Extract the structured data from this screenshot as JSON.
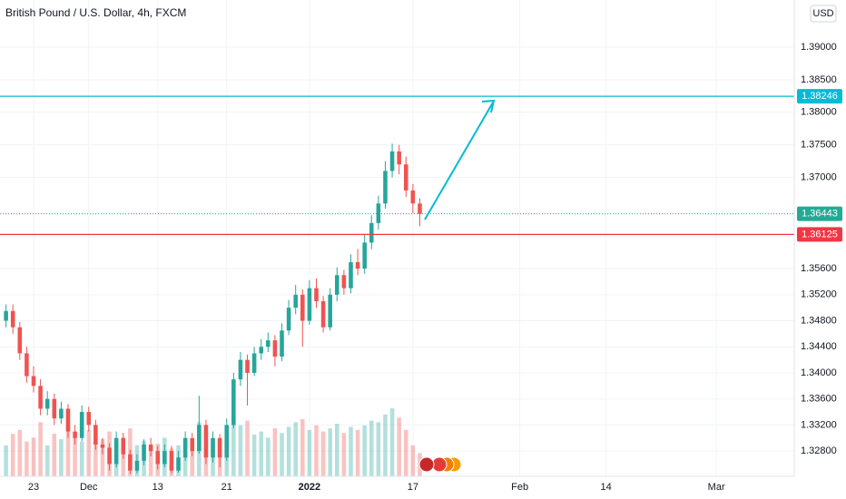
{
  "chart_data": {
    "type": "candlestick",
    "title": "British Pound / U.S. Dollar, 4h, FXCM",
    "currency": "USD",
    "x": [
      18,
      19,
      20,
      21,
      22,
      23,
      24,
      25,
      26,
      27,
      28,
      29,
      30,
      31,
      32,
      33,
      34,
      35,
      36,
      37,
      38,
      39,
      40,
      41,
      42,
      43,
      44,
      45,
      46,
      47,
      48,
      49,
      50,
      51,
      52,
      53,
      54,
      55,
      56,
      57,
      58,
      59,
      60,
      61,
      62,
      63,
      64,
      65,
      66,
      67,
      68,
      69,
      70,
      71,
      72,
      73,
      74,
      75,
      76,
      77,
      78
    ],
    "open": [
      1.348,
      1.3495,
      1.347,
      1.343,
      1.3395,
      1.338,
      1.3345,
      1.336,
      1.333,
      1.3345,
      1.331,
      1.33,
      1.334,
      1.332,
      1.329,
      1.3285,
      1.326,
      1.33,
      1.3275,
      1.325,
      1.3265,
      1.329,
      1.328,
      1.326,
      1.328,
      1.325,
      1.327,
      1.33,
      1.328,
      1.332,
      1.327,
      1.33,
      1.327,
      1.332,
      1.339,
      1.342,
      1.34,
      1.343,
      1.344,
      1.345,
      1.3425,
      1.3465,
      1.35,
      1.352,
      1.348,
      1.353,
      1.351,
      1.347,
      1.352,
      1.355,
      1.353,
      1.357,
      1.356,
      1.36,
      1.363,
      1.366,
      1.371,
      1.374,
      1.372,
      1.368,
      1.366
    ],
    "high": [
      1.3505,
      1.3505,
      1.3478,
      1.344,
      1.341,
      1.339,
      1.3372,
      1.3368,
      1.3356,
      1.3352,
      1.332,
      1.335,
      1.3348,
      1.3328,
      1.33,
      1.3292,
      1.331,
      1.3308,
      1.3282,
      1.3275,
      1.3298,
      1.33,
      1.3288,
      1.329,
      1.3288,
      1.328,
      1.331,
      1.3308,
      1.3365,
      1.3328,
      1.331,
      1.3306,
      1.333,
      1.34,
      1.3432,
      1.3428,
      1.344,
      1.3452,
      1.3462,
      1.3458,
      1.3476,
      1.3512,
      1.3535,
      1.3528,
      1.3542,
      1.3545,
      1.3518,
      1.353,
      1.3562,
      1.3558,
      1.3582,
      1.359,
      1.3612,
      1.3642,
      1.3672,
      1.3725,
      1.3752,
      1.375,
      1.3732,
      1.369,
      1.3668
    ],
    "low": [
      1.347,
      1.346,
      1.342,
      1.3385,
      1.337,
      1.3335,
      1.3335,
      1.332,
      1.3322,
      1.33,
      1.329,
      1.3295,
      1.331,
      1.3282,
      1.3275,
      1.325,
      1.3255,
      1.3268,
      1.3245,
      1.3246,
      1.3258,
      1.3272,
      1.3252,
      1.3255,
      1.3246,
      1.3247,
      1.3265,
      1.3272,
      1.3276,
      1.326,
      1.3262,
      1.3255,
      1.3265,
      1.3315,
      1.338,
      1.335,
      1.3395,
      1.342,
      1.3432,
      1.341,
      1.3418,
      1.3458,
      1.349,
      1.344,
      1.3474,
      1.35,
      1.3462,
      1.3465,
      1.351,
      1.352,
      1.3522,
      1.355,
      1.3552,
      1.359,
      1.362,
      1.3652,
      1.37,
      1.3705,
      1.367,
      1.3645,
      1.3625
    ],
    "close": [
      1.3495,
      1.347,
      1.343,
      1.3395,
      1.338,
      1.3345,
      1.336,
      1.333,
      1.3345,
      1.331,
      1.33,
      1.334,
      1.332,
      1.329,
      1.3285,
      1.326,
      1.33,
      1.3275,
      1.325,
      1.3265,
      1.329,
      1.328,
      1.326,
      1.328,
      1.325,
      1.327,
      1.33,
      1.328,
      1.332,
      1.327,
      1.33,
      1.327,
      1.332,
      1.339,
      1.342,
      1.34,
      1.343,
      1.344,
      1.345,
      1.3425,
      1.3465,
      1.35,
      1.352,
      1.348,
      1.353,
      1.351,
      1.347,
      1.352,
      1.355,
      1.353,
      1.357,
      1.356,
      1.36,
      1.363,
      1.366,
      1.371,
      1.374,
      1.372,
      1.368,
      1.366,
      1.3644
    ],
    "volume": [
      40,
      55,
      60,
      45,
      50,
      70,
      40,
      55,
      48,
      65,
      50,
      45,
      60,
      52,
      48,
      58,
      44,
      50,
      62,
      40,
      46,
      38,
      42,
      50,
      36,
      40,
      48,
      44,
      70,
      58,
      42,
      46,
      50,
      78,
      66,
      72,
      54,
      58,
      50,
      62,
      56,
      64,
      70,
      74,
      60,
      66,
      58,
      62,
      68,
      56,
      64,
      60,
      66,
      72,
      70,
      80,
      88,
      76,
      60,
      40,
      30
    ],
    "up_color": "#26a69a",
    "down_color": "#ef5350",
    "xlim": [
      17.13,
      132.3
    ],
    "xticks": [
      {
        "value": 22,
        "label": "23"
      },
      {
        "value": 30,
        "label": "Dec"
      },
      {
        "value": 40,
        "label": "13"
      },
      {
        "value": 50,
        "label": "21"
      },
      {
        "value": 62,
        "label": "2022"
      },
      {
        "value": 77,
        "label": "17"
      },
      {
        "value": 92.5,
        "label": "Feb"
      },
      {
        "value": 105,
        "label": "14"
      },
      {
        "value": 121,
        "label": "Mar"
      }
    ],
    "ylim": [
      1.32412,
      1.39724
    ],
    "yticks": [
      {
        "value": 1.39,
        "label": "1.39000"
      },
      {
        "value": 1.385,
        "label": "1.38500"
      },
      {
        "value": 1.38,
        "label": "1.38000"
      },
      {
        "value": 1.375,
        "label": "1.37500"
      },
      {
        "value": 1.37,
        "label": "1.37000"
      },
      {
        "value": 1.356,
        "label": "1.35600"
      },
      {
        "value": 1.352,
        "label": "1.35200"
      },
      {
        "value": 1.348,
        "label": "1.34800"
      },
      {
        "value": 1.344,
        "label": "1.34400"
      },
      {
        "value": 1.34,
        "label": "1.34000"
      },
      {
        "value": 1.336,
        "label": "1.33600"
      },
      {
        "value": 1.332,
        "label": "1.33200"
      },
      {
        "value": 1.328,
        "label": "1.32800"
      }
    ],
    "grid": true,
    "levels": [
      {
        "value": 1.38246,
        "color": "#00bcd4"
      },
      {
        "value": 1.36125,
        "color": "#f23645"
      }
    ],
    "last_price": {
      "value": 1.36443,
      "color": "#22ab94"
    }
  }
}
